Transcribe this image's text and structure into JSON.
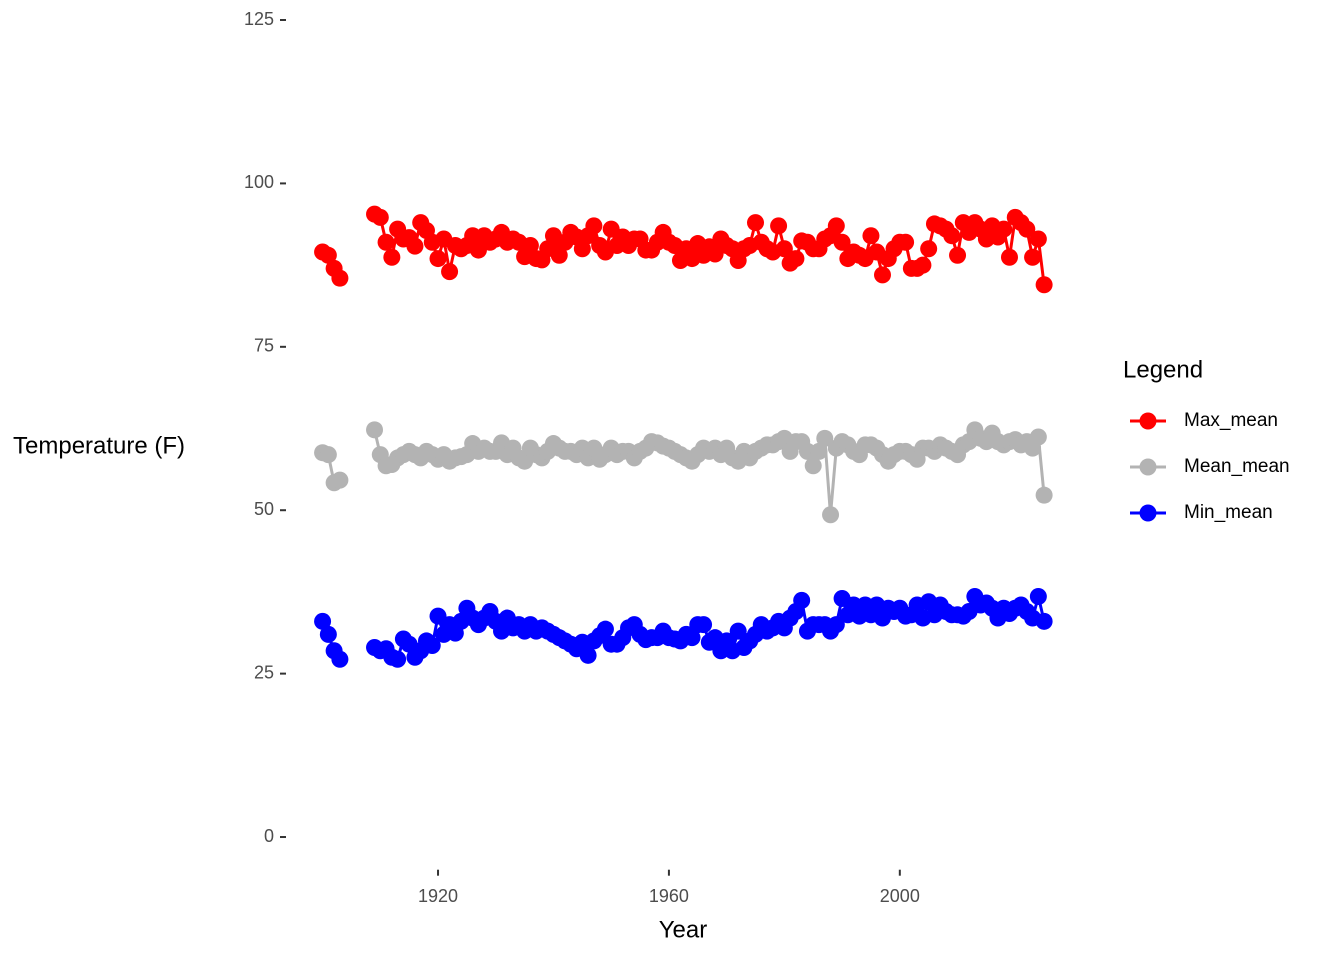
{
  "chart_data": {
    "type": "line",
    "x_label": "Year",
    "y_label": "Temperature (F)",
    "legend_title": "Legend",
    "legend_position": "right",
    "x": [
      1900,
      1901,
      1902,
      1903,
      1904,
      1905,
      1906,
      1907,
      1908,
      1909,
      1910,
      1911,
      1912,
      1913,
      1914,
      1915,
      1916,
      1917,
      1918,
      1919,
      1920,
      1921,
      1922,
      1923,
      1924,
      1925,
      1926,
      1927,
      1928,
      1929,
      1930,
      1931,
      1932,
      1933,
      1934,
      1935,
      1936,
      1937,
      1938,
      1939,
      1940,
      1941,
      1942,
      1943,
      1944,
      1945,
      1946,
      1947,
      1948,
      1949,
      1950,
      1951,
      1952,
      1953,
      1954,
      1955,
      1956,
      1957,
      1958,
      1959,
      1960,
      1961,
      1962,
      1963,
      1964,
      1965,
      1966,
      1967,
      1968,
      1969,
      1970,
      1971,
      1972,
      1973,
      1974,
      1975,
      1976,
      1977,
      1978,
      1979,
      1980,
      1981,
      1982,
      1983,
      1984,
      1985,
      1986,
      1987,
      1988,
      1989,
      1990,
      1991,
      1992,
      1993,
      1994,
      1995,
      1996,
      1997,
      1998,
      1999,
      2000,
      2001,
      2002,
      2003,
      2004,
      2005,
      2006,
      2007,
      2008,
      2009,
      2010,
      2011,
      2012,
      2013,
      2014,
      2015,
      2016,
      2017,
      2018,
      2019,
      2020,
      2021,
      2022,
      2023,
      2024,
      2025
    ],
    "series": [
      {
        "name": "Max_mean",
        "color": "#ff0000",
        "values": [
          89.5,
          89,
          87,
          85.5,
          null,
          null,
          null,
          null,
          null,
          95.3,
          94.8,
          91,
          88.7,
          93,
          91.5,
          91.7,
          90.4,
          94,
          92.8,
          91,
          88.5,
          91.5,
          86.5,
          90.5,
          90,
          90.5,
          92,
          89.8,
          92,
          91,
          91.5,
          92.5,
          91,
          91.5,
          91,
          88.8,
          90.5,
          88.5,
          88.3,
          90,
          92,
          89,
          91,
          92.5,
          91.8,
          90,
          92,
          93.5,
          90.5,
          89.5,
          93,
          90.5,
          91.8,
          90.5,
          91.5,
          91.5,
          89.8,
          89.8,
          91,
          92.5,
          91,
          90.5,
          88.2,
          90,
          88.5,
          90.8,
          89,
          90.3,
          89.2,
          91.5,
          90.5,
          90,
          88.2,
          90,
          90.5,
          94,
          91,
          90,
          89.5,
          93.5,
          90,
          87.8,
          88.5,
          91.2,
          91,
          90,
          90,
          91.5,
          92,
          93.5,
          91,
          88.5,
          89.5,
          89,
          88.5,
          92,
          89.5,
          86,
          88.5,
          90,
          91,
          91,
          87,
          87,
          87.5,
          90,
          93.8,
          93.5,
          93,
          92,
          89,
          94,
          92.5,
          94,
          93,
          91.5,
          93.5,
          91.8,
          93,
          88.7,
          94.8,
          94,
          93,
          88.7,
          91.5,
          84.5
        ]
      },
      {
        "name": "Mean_mean",
        "color": "#b3b3b3",
        "values": [
          58.8,
          58.5,
          54.2,
          54.6,
          null,
          null,
          null,
          null,
          null,
          62.3,
          58.5,
          56.8,
          57,
          58,
          58.5,
          59,
          58.5,
          58,
          59,
          58.5,
          57.8,
          58.5,
          57.5,
          58,
          58.2,
          58.5,
          60.2,
          59,
          59.5,
          59,
          59,
          60.3,
          58.5,
          59.5,
          58,
          57.5,
          59.5,
          58.5,
          58,
          59,
          60.2,
          59.5,
          59,
          59,
          58.5,
          59.5,
          58,
          59.5,
          57.8,
          58.5,
          59.5,
          58.5,
          59,
          59,
          58,
          59,
          59.5,
          60.5,
          60.3,
          59.8,
          59.5,
          59,
          58.5,
          58,
          57.5,
          58.5,
          59.5,
          59,
          59.5,
          58.5,
          59.5,
          58,
          57.5,
          59,
          58,
          59,
          59.5,
          60,
          60,
          60.5,
          61,
          59,
          60.5,
          60.5,
          59,
          56.8,
          59,
          61,
          49.3,
          59.5,
          60.5,
          60,
          59,
          58.5,
          60,
          60,
          59.5,
          58.5,
          57.5,
          58.5,
          59,
          59,
          58.5,
          57.8,
          59.5,
          59.5,
          59,
          60,
          59.5,
          59,
          58.5,
          60,
          60.5,
          62.3,
          61,
          60.5,
          61.8,
          60.5,
          60,
          60.5,
          60.8,
          60,
          60.5,
          59.5,
          61.2,
          52.3
        ]
      },
      {
        "name": "Min_mean",
        "color": "#0000ff",
        "values": [
          33,
          31,
          28.5,
          27.2,
          null,
          null,
          null,
          null,
          null,
          29,
          28.5,
          28.8,
          27.5,
          27.2,
          30.3,
          29.5,
          27.5,
          28.5,
          30,
          29.3,
          33.8,
          31,
          32.5,
          31.2,
          33,
          35,
          33.5,
          32.5,
          33.5,
          34.5,
          33,
          31.5,
          33.5,
          32,
          32.5,
          31.5,
          32.5,
          31.5,
          32,
          31.5,
          31,
          30.5,
          30,
          29.5,
          28.8,
          29.8,
          27.8,
          30,
          30.8,
          31.8,
          29.5,
          29.5,
          30.5,
          32,
          32.5,
          31,
          30.2,
          30.5,
          30.5,
          31.5,
          30.5,
          30.3,
          30,
          31,
          30.5,
          32.5,
          32.5,
          29.8,
          30.5,
          28.5,
          30,
          28.5,
          31.5,
          29,
          30,
          31,
          32.5,
          31.5,
          32,
          33,
          32,
          33.5,
          34.5,
          36.2,
          31.5,
          32.5,
          32.5,
          32.5,
          31.5,
          32.5,
          36.5,
          34,
          35.5,
          33.8,
          35.5,
          34,
          35.5,
          33.5,
          35,
          34.5,
          35,
          33.8,
          34,
          35.5,
          33.5,
          36,
          34,
          35.5,
          34.5,
          34,
          34,
          33.8,
          34.5,
          36.8,
          35.5,
          35.8,
          35,
          33.5,
          35,
          34.2,
          35,
          35.5,
          34.5,
          33.5,
          36.8,
          33
        ]
      }
    ],
    "xlim": [
      1893.75,
      2031.25
    ],
    "xticks": [
      1920,
      1960,
      2000
    ],
    "ylim": [
      -5,
      128
    ],
    "yticks": [
      0,
      25,
      50,
      75,
      100,
      125
    ],
    "grid": false
  }
}
